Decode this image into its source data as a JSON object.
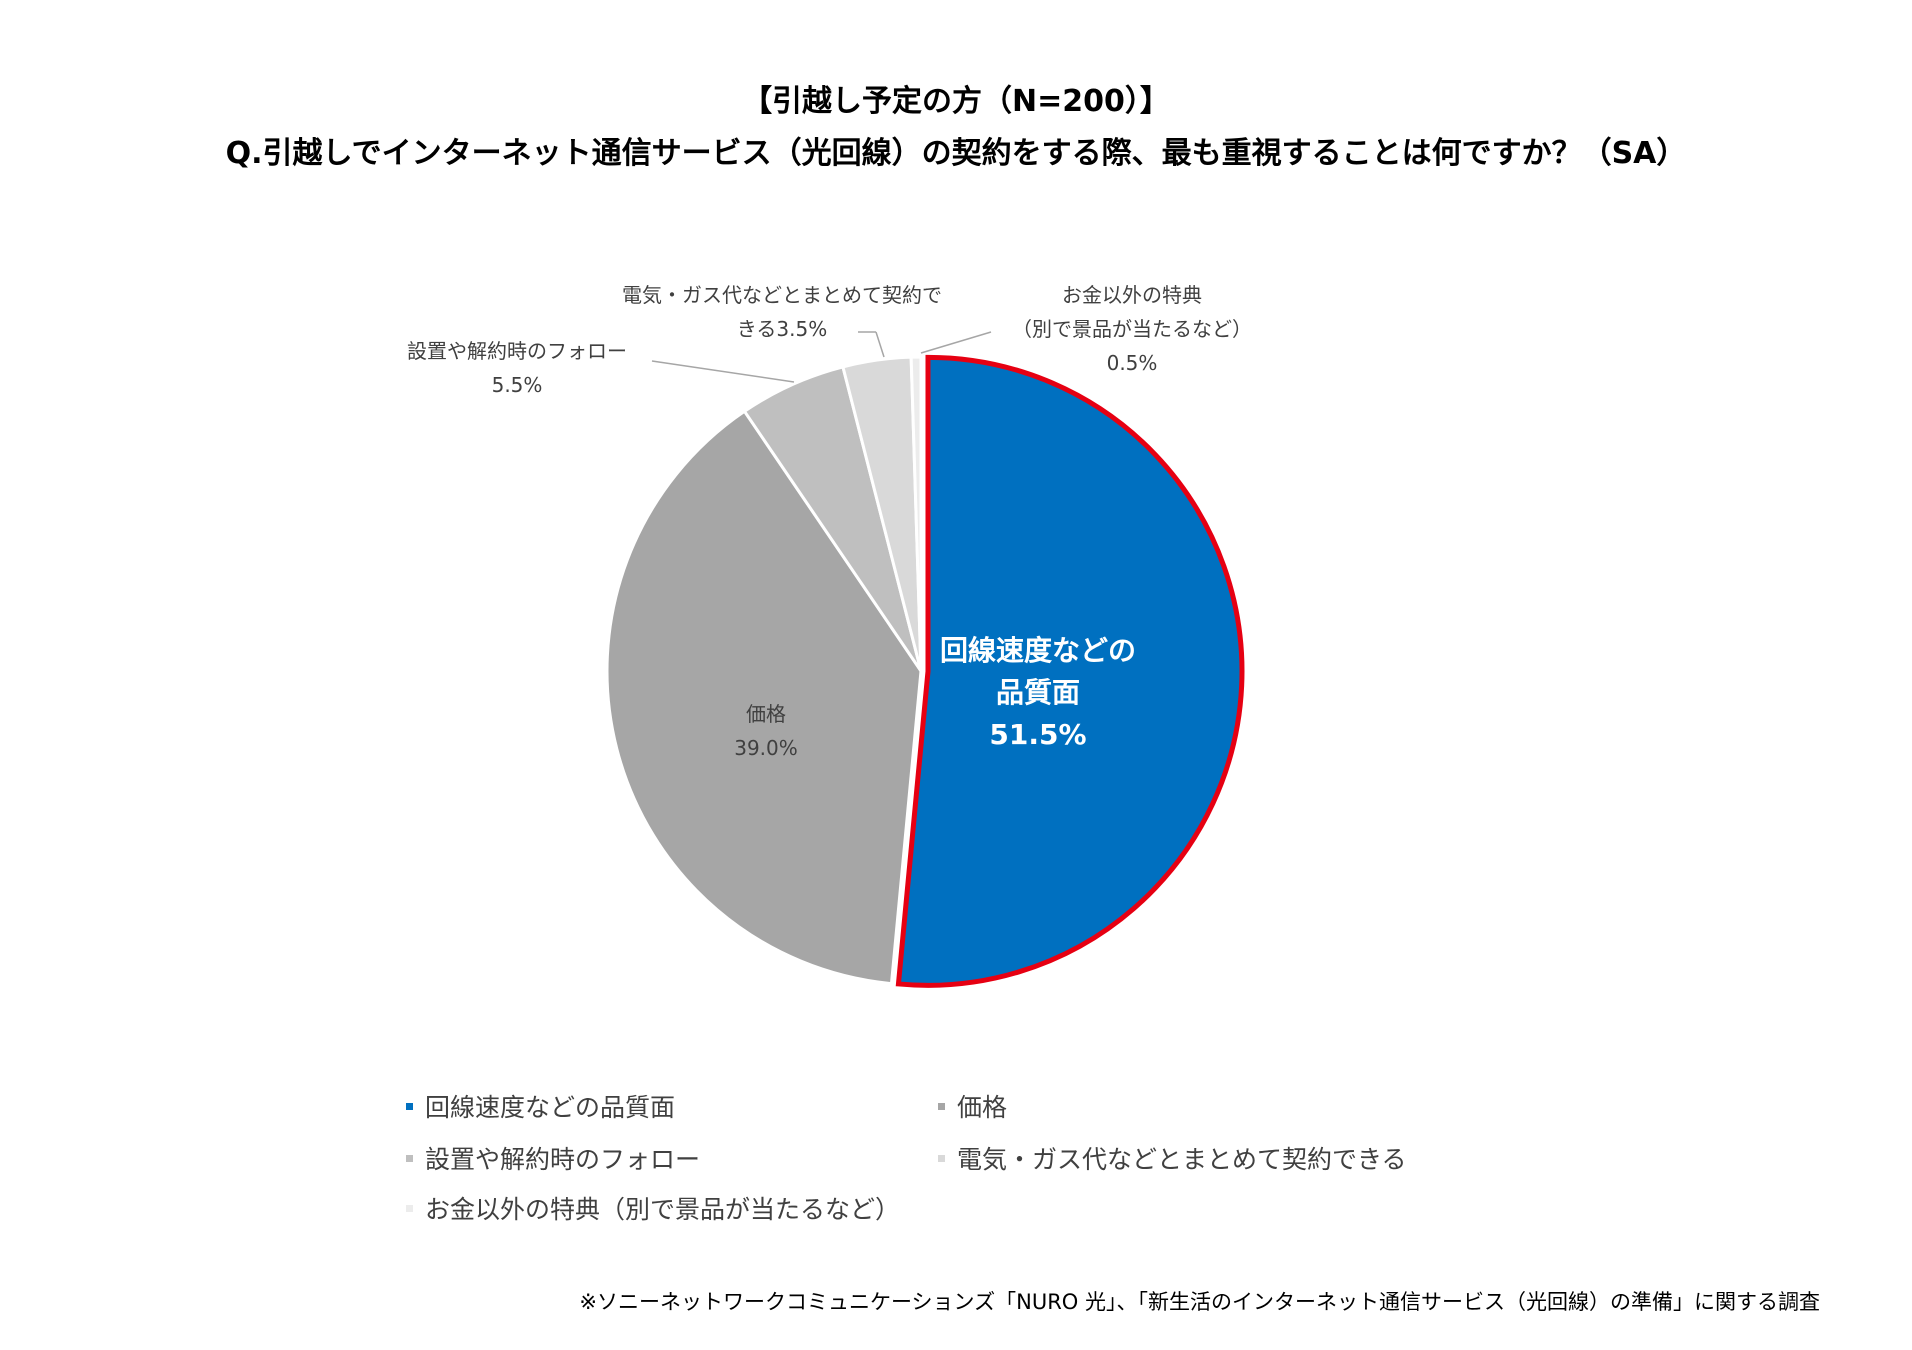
{
  "chart_data": {
    "type": "pie",
    "title": "【引越し予定の方（N=200）】",
    "subtitle": "Q.引越しでインターネット通信サービス（光回線）の契約をする際、最も重視することは何ですか？（SA）",
    "categories": [
      "回線速度などの品質面",
      "価格",
      "設置や解約時のフォロー",
      "電気・ガス代などとまとめて契約できる",
      "お金以外の特典（別で景品が当たるなど）"
    ],
    "values": [
      51.5,
      39.0,
      5.5,
      3.5,
      0.5
    ],
    "value_labels": [
      "51.5%",
      "39.0%",
      "5.5%",
      "3.5%",
      "0.5%"
    ],
    "colors": [
      "#0070c0",
      "#a6a6a6",
      "#bfbfbf",
      "#d9d9d9",
      "#ececec"
    ],
    "highlight_color": "#e60012",
    "source": "※ソニーネットワークコミュニケーションズ「NURO 光」、「新生活のインターネット通信サービス（光回線）の準備」に関する調査"
  }
}
